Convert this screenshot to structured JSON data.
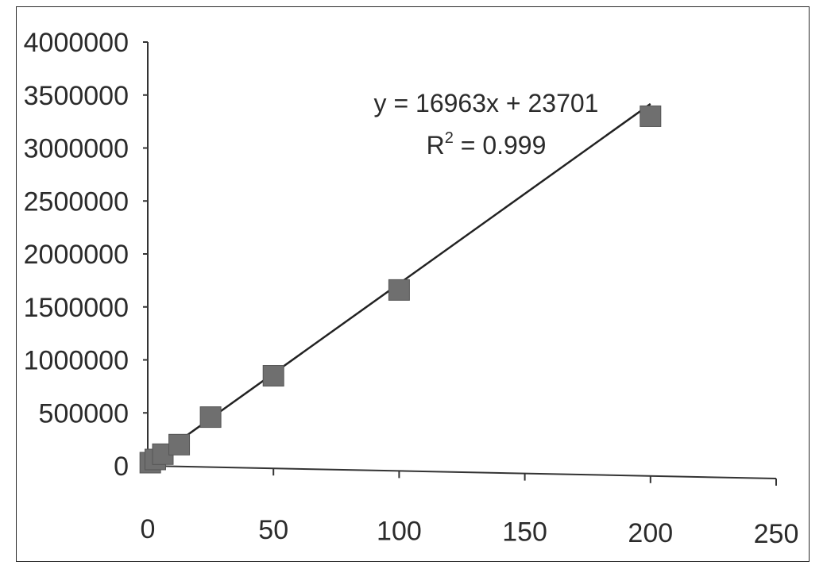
{
  "chart_data": {
    "type": "scatter",
    "title": "",
    "xlabel": "",
    "ylabel": "",
    "xlim": [
      0,
      250
    ],
    "ylim": [
      0,
      4000000
    ],
    "x_ticks": [
      "0",
      "50",
      "100",
      "150",
      "200",
      "250"
    ],
    "y_ticks": [
      "0",
      "500000",
      "1000000",
      "1500000",
      "2000000",
      "2500000",
      "3000000",
      "3500000",
      "4000000"
    ],
    "grid": false,
    "legend": "none",
    "marker": "square",
    "marker_color": "#6f6f6f",
    "line_color": "#222222",
    "series": [
      {
        "x": [
          1,
          3,
          6,
          12.5,
          25,
          50,
          100,
          200
        ],
        "y": [
          30000,
          60000,
          110000,
          200000,
          460000,
          850000,
          1660000,
          3300000
        ]
      }
    ],
    "trendline": {
      "type": "linear",
      "slope": 16963,
      "intercept": 23701,
      "x_range": [
        1,
        200
      ],
      "equation_label": "y = 16963x + 23701",
      "r2_label_prefix": "R",
      "r2_label_sup": "2",
      "r2_label_suffix": " = 0.999"
    }
  }
}
